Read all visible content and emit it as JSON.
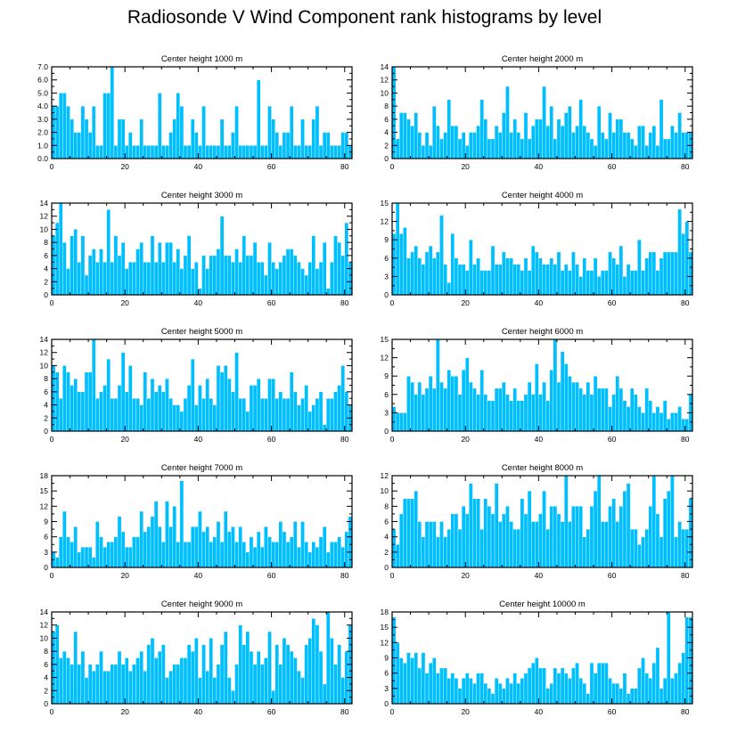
{
  "title": "Radiosonde V Wind Component rank histograms by level",
  "colors": {
    "bar": "#00bfff",
    "axis": "#000000",
    "background": "#ffffff"
  },
  "chart_data": [
    {
      "type": "bar",
      "title": "Center height 1000 m",
      "xlabel": "",
      "ylabel": "",
      "xlim": [
        0,
        82
      ],
      "ylim": [
        0,
        7
      ],
      "yticks": [
        0,
        1,
        2,
        3,
        4,
        5,
        6,
        7
      ],
      "ytick_format": "fixed1",
      "xticks": [
        0,
        20,
        40,
        60,
        80
      ],
      "values": [
        4,
        4,
        5,
        5,
        4,
        3,
        2,
        2,
        4,
        3,
        2,
        4,
        1,
        1,
        5,
        5,
        7,
        1,
        3,
        3,
        1,
        2,
        1,
        1,
        3,
        1,
        1,
        1,
        1,
        5,
        1,
        1,
        2,
        3,
        5,
        4,
        1,
        1,
        3,
        2,
        1,
        4,
        1,
        1,
        1,
        1,
        3,
        1,
        1,
        2,
        4,
        1,
        1,
        1,
        1,
        1,
        6,
        1,
        1,
        4,
        3,
        2,
        1,
        2,
        2,
        4,
        1,
        1,
        3,
        1,
        1,
        3,
        4,
        1,
        2,
        2,
        1,
        1,
        1,
        2,
        2,
        1
      ]
    },
    {
      "type": "bar",
      "title": "Center height 2000 m",
      "xlabel": "",
      "ylabel": "",
      "xlim": [
        0,
        82
      ],
      "ylim": [
        0,
        14
      ],
      "yticks": [
        0,
        2,
        4,
        6,
        8,
        10,
        12,
        14
      ],
      "ytick_format": "int",
      "xticks": [
        0,
        20,
        40,
        60,
        80
      ],
      "values": [
        14,
        3,
        7,
        7,
        6,
        5,
        7,
        4,
        2,
        4,
        2,
        8,
        5,
        3,
        4,
        9,
        5,
        5,
        3,
        4,
        2,
        4,
        4,
        5,
        9,
        6,
        3,
        3,
        5,
        4,
        7,
        11,
        4,
        6,
        4,
        3,
        7,
        3,
        5,
        6,
        6,
        11,
        5,
        8,
        3,
        6,
        5,
        7,
        8,
        4,
        5,
        9,
        5,
        4,
        3,
        2,
        8,
        4,
        3,
        7,
        4,
        6,
        6,
        4,
        4,
        3,
        2,
        5,
        5,
        2,
        4,
        5,
        2,
        9,
        3,
        3,
        5,
        4,
        7,
        4,
        4,
        4
      ]
    },
    {
      "type": "bar",
      "title": "Center height 3000 m",
      "xlabel": "",
      "ylabel": "",
      "xlim": [
        0,
        82
      ],
      "ylim": [
        0,
        14
      ],
      "yticks": [
        0,
        2,
        4,
        6,
        8,
        10,
        12,
        14
      ],
      "ytick_format": "int",
      "xticks": [
        0,
        20,
        40,
        60,
        80
      ],
      "values": [
        9,
        11,
        14,
        8,
        4,
        9,
        10,
        5,
        9,
        3,
        6,
        7,
        5,
        7,
        5,
        13,
        5,
        9,
        6,
        8,
        4,
        5,
        5,
        7,
        8,
        5,
        5,
        9,
        5,
        8,
        5,
        8,
        8,
        5,
        7,
        4,
        6,
        9,
        4,
        5,
        1,
        6,
        4,
        6,
        6,
        7,
        12,
        6,
        6,
        5,
        7,
        5,
        9,
        6,
        6,
        8,
        5,
        5,
        3,
        8,
        5,
        4,
        5,
        6,
        7,
        7,
        6,
        5,
        4,
        3,
        5,
        9,
        4,
        5,
        8,
        1,
        5,
        9,
        8,
        6,
        11,
        5
      ]
    },
    {
      "type": "bar",
      "title": "Center height 4000 m",
      "xlabel": "",
      "ylabel": "",
      "xlim": [
        0,
        82
      ],
      "ylim": [
        0,
        15
      ],
      "yticks": [
        0,
        3,
        6,
        9,
        12,
        15
      ],
      "ytick_format": "int",
      "xticks": [
        0,
        20,
        40,
        60,
        80
      ],
      "values": [
        10,
        15,
        10,
        11,
        6,
        7,
        8,
        6,
        5,
        7,
        8,
        6,
        7,
        13,
        5,
        2,
        10,
        6,
        5,
        5,
        4,
        9,
        5,
        6,
        4,
        4,
        4,
        8,
        5,
        5,
        7,
        6,
        6,
        5,
        5,
        4,
        6,
        4,
        8,
        7,
        6,
        5,
        5,
        6,
        5,
        7,
        4,
        5,
        4,
        7,
        5,
        3,
        6,
        4,
        4,
        6,
        3,
        4,
        4,
        7,
        6,
        5,
        8,
        3,
        5,
        4,
        4,
        9,
        4,
        6,
        7,
        7,
        4,
        6,
        7,
        7,
        7,
        7,
        14,
        10,
        12,
        7
      ]
    },
    {
      "type": "bar",
      "title": "Center height 5000 m",
      "xlabel": "",
      "ylabel": "",
      "xlim": [
        0,
        82
      ],
      "ylim": [
        0,
        14
      ],
      "yticks": [
        0,
        2,
        4,
        6,
        8,
        10,
        12,
        14
      ],
      "ytick_format": "int",
      "xticks": [
        0,
        20,
        40,
        60,
        80
      ],
      "values": [
        10,
        9,
        5,
        10,
        9,
        7,
        8,
        6,
        6,
        9,
        9,
        14,
        5,
        6,
        7,
        11,
        5,
        5,
        7,
        12,
        6,
        10,
        5,
        5,
        4,
        9,
        5,
        8,
        6,
        7,
        6,
        8,
        5,
        4,
        4,
        3,
        5,
        7,
        11,
        4,
        7,
        5,
        8,
        5,
        4,
        10,
        9,
        10,
        8,
        6,
        12,
        5,
        5,
        3,
        7,
        7,
        8,
        5,
        5,
        8,
        8,
        5,
        6,
        5,
        5,
        9,
        6,
        4,
        5,
        7,
        3,
        4,
        5,
        6,
        1,
        5,
        5,
        6,
        7,
        10,
        6,
        4
      ]
    },
    {
      "type": "bar",
      "title": "Center height 6000 m",
      "xlabel": "",
      "ylabel": "",
      "xlim": [
        0,
        82
      ],
      "ylim": [
        0,
        15
      ],
      "yticks": [
        0,
        3,
        6,
        9,
        12,
        15
      ],
      "ytick_format": "int",
      "xticks": [
        0,
        20,
        40,
        60,
        80
      ],
      "values": [
        4,
        3,
        3,
        3,
        9,
        8,
        6,
        8,
        6,
        7,
        9,
        7,
        15,
        8,
        7,
        10,
        9,
        9,
        6,
        10,
        12,
        8,
        7,
        6,
        10,
        6,
        5,
        5,
        7,
        7,
        8,
        6,
        5,
        7,
        5,
        5,
        6,
        8,
        6,
        11,
        6,
        8,
        5,
        10,
        15,
        8,
        13,
        11,
        9,
        8,
        8,
        7,
        6,
        8,
        6,
        9,
        7,
        7,
        7,
        4,
        6,
        9,
        7,
        5,
        4,
        7,
        6,
        4,
        3,
        7,
        5,
        3,
        4,
        3,
        5,
        2,
        3,
        3,
        4,
        2,
        2,
        6
      ]
    },
    {
      "type": "bar",
      "title": "Center height 7000 m",
      "xlabel": "",
      "ylabel": "",
      "xlim": [
        0,
        82
      ],
      "ylim": [
        0,
        18
      ],
      "yticks": [
        0,
        3,
        6,
        9,
        12,
        15,
        18
      ],
      "ytick_format": "int",
      "xticks": [
        0,
        20,
        40,
        60,
        80
      ],
      "values": [
        3,
        2,
        6,
        11,
        6,
        5,
        8,
        3,
        4,
        4,
        4,
        2,
        9,
        6,
        4,
        5,
        5,
        6,
        10,
        7,
        4,
        4,
        6,
        6,
        11,
        7,
        8,
        10,
        13,
        8,
        5,
        13,
        8,
        12,
        5,
        17,
        5,
        5,
        8,
        8,
        11,
        7,
        8,
        5,
        6,
        9,
        5,
        11,
        7,
        8,
        5,
        8,
        5,
        3,
        6,
        4,
        7,
        4,
        8,
        6,
        5,
        5,
        9,
        7,
        5,
        6,
        9,
        4,
        9,
        5,
        3,
        5,
        4,
        6,
        8,
        3,
        5,
        5,
        6,
        4,
        7,
        10
      ]
    },
    {
      "type": "bar",
      "title": "Center height 8000 m",
      "xlabel": "",
      "ylabel": "",
      "xlim": [
        0,
        82
      ],
      "ylim": [
        0,
        12
      ],
      "yticks": [
        0,
        2,
        4,
        6,
        8,
        10,
        12
      ],
      "ytick_format": "int",
      "xticks": [
        0,
        20,
        40,
        60,
        80
      ],
      "values": [
        5,
        3,
        7,
        9,
        9,
        9,
        10,
        6,
        4,
        6,
        6,
        6,
        4,
        6,
        4,
        5,
        7,
        7,
        5,
        8,
        7,
        11,
        9,
        9,
        5,
        9,
        8,
        7,
        11,
        6,
        7,
        8,
        6,
        5,
        5,
        9,
        7,
        10,
        6,
        6,
        7,
        10,
        5,
        8,
        8,
        7,
        6,
        12,
        6,
        8,
        8,
        8,
        4,
        5,
        8,
        10,
        12,
        6,
        6,
        8,
        9,
        6,
        8,
        10,
        11,
        5,
        5,
        3,
        4,
        5,
        8,
        12,
        7,
        4,
        9,
        10,
        12,
        4,
        6,
        5,
        5,
        9
      ]
    },
    {
      "type": "bar",
      "title": "Center height 9000 m",
      "xlabel": "",
      "ylabel": "",
      "xlim": [
        0,
        82
      ],
      "ylim": [
        0,
        14
      ],
      "yticks": [
        0,
        2,
        4,
        6,
        8,
        10,
        12,
        14
      ],
      "ytick_format": "int",
      "xticks": [
        0,
        20,
        40,
        60,
        80
      ],
      "values": [
        11,
        12,
        7,
        8,
        7,
        6,
        11,
        6,
        8,
        4,
        6,
        5,
        6,
        8,
        5,
        5,
        6,
        6,
        8,
        6,
        7,
        5,
        6,
        7,
        8,
        5,
        9,
        10,
        7,
        8,
        9,
        4,
        5,
        6,
        6,
        7,
        7,
        9,
        8,
        10,
        4,
        9,
        5,
        10,
        4,
        6,
        9,
        11,
        4,
        2,
        6,
        12,
        9,
        11,
        8,
        6,
        8,
        6,
        7,
        11,
        2,
        9,
        6,
        10,
        9,
        8,
        7,
        5,
        4,
        9,
        10,
        13,
        12,
        8,
        3,
        14,
        10,
        6,
        9,
        4,
        8,
        12
      ]
    },
    {
      "type": "bar",
      "title": "Center height 10000 m",
      "xlabel": "",
      "ylabel": "",
      "xlim": [
        0,
        82
      ],
      "ylim": [
        0,
        18
      ],
      "yticks": [
        0,
        3,
        6,
        9,
        12,
        15,
        18
      ],
      "ytick_format": "int",
      "xticks": [
        0,
        20,
        40,
        60,
        80
      ],
      "values": [
        17,
        12,
        9,
        8,
        10,
        9,
        10,
        7,
        10,
        6,
        8,
        9,
        6,
        7,
        7,
        5,
        6,
        5,
        3,
        5,
        6,
        5,
        4,
        6,
        6,
        4,
        3,
        2,
        5,
        4,
        3,
        5,
        4,
        6,
        4,
        5,
        6,
        7,
        8,
        9,
        7,
        7,
        3,
        4,
        7,
        6,
        7,
        6,
        5,
        7,
        8,
        5,
        4,
        2,
        8,
        6,
        8,
        8,
        8,
        5,
        4,
        4,
        3,
        6,
        2,
        3,
        3,
        7,
        9,
        6,
        5,
        8,
        11,
        3,
        5,
        18,
        5,
        6,
        8,
        10,
        17,
        17
      ]
    }
  ]
}
